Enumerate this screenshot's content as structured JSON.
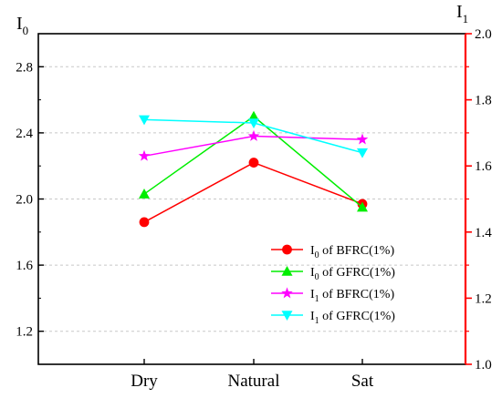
{
  "chart_data": {
    "type": "line",
    "categories": [
      "Dry",
      "Natural",
      "Sat"
    ],
    "left_axis": {
      "label_main": "I",
      "label_sub": "0",
      "ylim": [
        1.0,
        3.0
      ],
      "ticks": [
        "1.2",
        "1.6",
        "2.0",
        "2.4",
        "2.8"
      ]
    },
    "right_axis": {
      "label_main": "I",
      "label_sub": "1",
      "ylim": [
        1.0,
        2.0
      ],
      "ticks": [
        "1.0",
        "1.2",
        "1.4",
        "1.6",
        "1.8",
        "2.0"
      ],
      "color": "#ff0000"
    },
    "grid": true,
    "legend_position": "bottom-right",
    "series": [
      {
        "name_main": "I",
        "name_sub": "0",
        "name_rest": " of BFRC(1%)",
        "axis": "left",
        "color": "#ff0000",
        "marker": "circle",
        "values": [
          1.86,
          2.22,
          1.97
        ]
      },
      {
        "name_main": "I",
        "name_sub": "0",
        "name_rest": " of GFRC(1%)",
        "axis": "left",
        "color": "#00ee00",
        "marker": "triangle-up",
        "values": [
          2.03,
          2.5,
          1.95
        ]
      },
      {
        "name_main": "I",
        "name_sub": "1",
        "name_rest": " of BFRC(1%)",
        "axis": "right",
        "color": "#ff00ff",
        "marker": "star",
        "values": [
          1.63,
          1.69,
          1.68
        ]
      },
      {
        "name_main": "I",
        "name_sub": "1",
        "name_rest": " of GFRC(1%)",
        "axis": "right",
        "color": "#00ffff",
        "marker": "triangle-down",
        "values": [
          1.74,
          1.73,
          1.64
        ]
      }
    ]
  }
}
